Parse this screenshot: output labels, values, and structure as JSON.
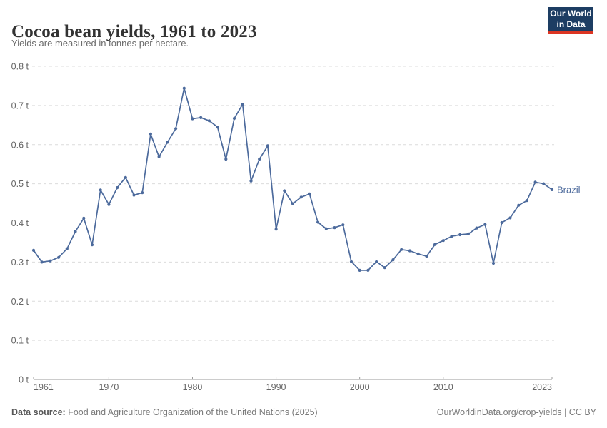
{
  "header": {
    "title": "Cocoa bean yields, 1961 to 2023",
    "subtitle": "Yields are measured in tonnes per hectare.",
    "logo": {
      "line1": "Our World",
      "line2": "in Data",
      "bg_color": "#1d3d63",
      "accent_color": "#dc3523"
    }
  },
  "footer": {
    "source_label": "Data source:",
    "source_text": " Food and Agriculture Organization of the United Nations (2025)",
    "credit": "OurWorldinData.org/crop-yields | CC BY"
  },
  "chart_data": {
    "type": "line",
    "title": "Cocoa bean yields, 1961 to 2023",
    "xlabel": "",
    "ylabel": "tonnes per hectare",
    "unit": "t",
    "ylim": [
      0,
      0.8
    ],
    "grid": "horizontal-dashed",
    "legend_position": "end-of-line",
    "colors": {
      "grid": "#dcdcdc",
      "axis": "#999999",
      "tick_label": "#666666"
    },
    "yticks": [
      {
        "value": 0.0,
        "label": "0 t"
      },
      {
        "value": 0.1,
        "label": "0.1 t"
      },
      {
        "value": 0.2,
        "label": "0.2 t"
      },
      {
        "value": 0.3,
        "label": "0.3 t"
      },
      {
        "value": 0.4,
        "label": "0.4 t"
      },
      {
        "value": 0.5,
        "label": "0.5 t"
      },
      {
        "value": 0.6,
        "label": "0.6 t"
      },
      {
        "value": 0.7,
        "label": "0.7 t"
      },
      {
        "value": 0.8,
        "label": "0.8 t"
      }
    ],
    "xticks": [
      {
        "year": 1961,
        "label": "1961"
      },
      {
        "year": 1970,
        "label": "1970"
      },
      {
        "year": 1980,
        "label": "1980"
      },
      {
        "year": 1990,
        "label": "1990"
      },
      {
        "year": 2000,
        "label": "2000"
      },
      {
        "year": 2010,
        "label": "2010"
      },
      {
        "year": 2023,
        "label": "2023"
      }
    ],
    "series": [
      {
        "name": "Brazil",
        "color": "#4C6A9C",
        "years": [
          1961,
          1962,
          1963,
          1964,
          1965,
          1966,
          1967,
          1968,
          1969,
          1970,
          1971,
          1972,
          1973,
          1974,
          1975,
          1976,
          1977,
          1978,
          1979,
          1980,
          1981,
          1982,
          1983,
          1984,
          1985,
          1986,
          1987,
          1988,
          1989,
          1990,
          1991,
          1992,
          1993,
          1994,
          1995,
          1996,
          1997,
          1998,
          1999,
          2000,
          2001,
          2002,
          2003,
          2004,
          2005,
          2006,
          2007,
          2008,
          2009,
          2010,
          2011,
          2012,
          2013,
          2014,
          2015,
          2016,
          2017,
          2018,
          2019,
          2020,
          2021,
          2022,
          2023
        ],
        "values": [
          0.33,
          0.3,
          0.303,
          0.312,
          0.334,
          0.378,
          0.412,
          0.344,
          0.484,
          0.447,
          0.49,
          0.516,
          0.471,
          0.477,
          0.627,
          0.569,
          0.606,
          0.641,
          0.744,
          0.666,
          0.669,
          0.661,
          0.645,
          0.563,
          0.667,
          0.703,
          0.507,
          0.563,
          0.597,
          0.384,
          0.482,
          0.449,
          0.466,
          0.474,
          0.402,
          0.385,
          0.388,
          0.395,
          0.301,
          0.279,
          0.279,
          0.301,
          0.286,
          0.306,
          0.332,
          0.329,
          0.321,
          0.315,
          0.345,
          0.355,
          0.366,
          0.37,
          0.372,
          0.387,
          0.396,
          0.297,
          0.401,
          0.413,
          0.445,
          0.457,
          0.504,
          0.5,
          0.485
        ]
      }
    ]
  }
}
